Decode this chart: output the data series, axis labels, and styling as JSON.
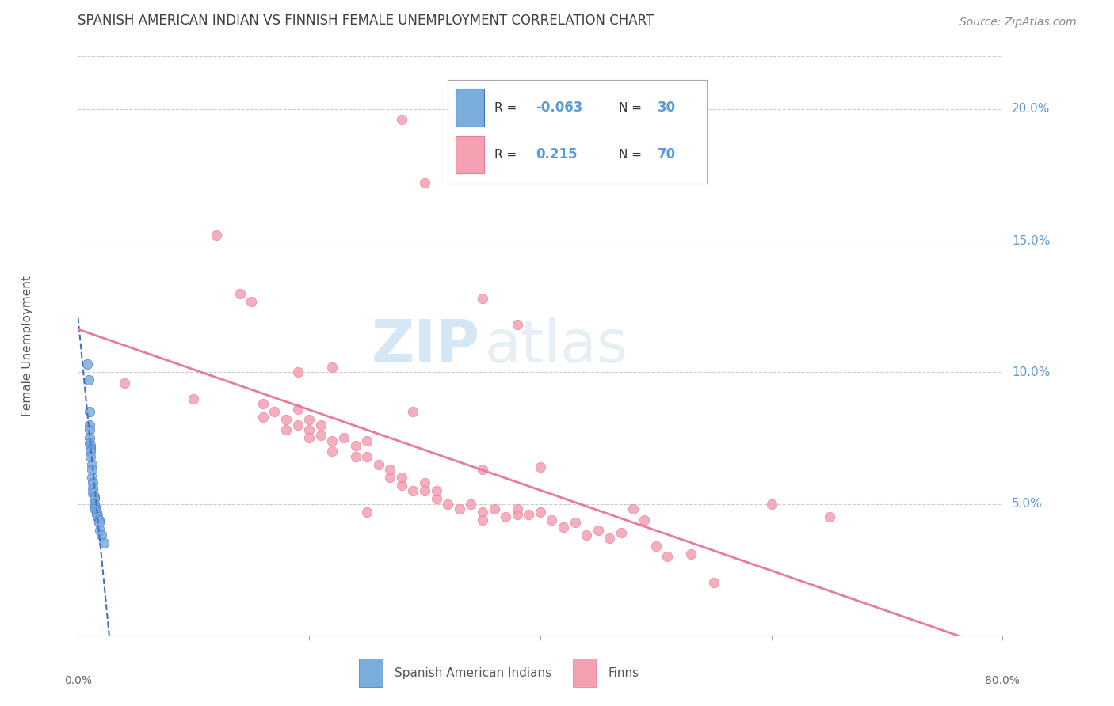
{
  "title": "SPANISH AMERICAN INDIAN VS FINNISH FEMALE UNEMPLOYMENT CORRELATION CHART",
  "source": "Source: ZipAtlas.com",
  "ylabel": "Female Unemployment",
  "ytick_labels": [
    "5.0%",
    "10.0%",
    "15.0%",
    "20.0%"
  ],
  "ytick_values": [
    0.05,
    0.1,
    0.15,
    0.2
  ],
  "xlim": [
    0.0,
    0.8
  ],
  "ylim": [
    0.0,
    0.22
  ],
  "watermark_zip": "ZIP",
  "watermark_atlas": "atlas",
  "color_blue": "#7aaddc",
  "color_pink": "#f4a0b0",
  "color_blue_dark": "#4472c4",
  "color_pink_dark": "#e879a0",
  "color_axis_label": "#5b9bd5",
  "color_title": "#404040",
  "color_source": "#888888",
  "color_grid": "#cccccc",
  "blue_scatter_x": [
    0.008,
    0.009,
    0.01,
    0.01,
    0.01,
    0.01,
    0.01,
    0.011,
    0.011,
    0.011,
    0.011,
    0.012,
    0.012,
    0.012,
    0.013,
    0.013,
    0.013,
    0.014,
    0.014,
    0.014,
    0.015,
    0.015,
    0.016,
    0.016,
    0.017,
    0.018,
    0.018,
    0.019,
    0.02,
    0.022
  ],
  "blue_scatter_y": [
    0.103,
    0.097,
    0.085,
    0.08,
    0.078,
    0.075,
    0.073,
    0.072,
    0.071,
    0.07,
    0.068,
    0.065,
    0.063,
    0.06,
    0.058,
    0.056,
    0.054,
    0.053,
    0.052,
    0.05,
    0.049,
    0.048,
    0.047,
    0.046,
    0.045,
    0.044,
    0.043,
    0.04,
    0.038,
    0.035
  ],
  "pink_scatter_x": [
    0.04,
    0.1,
    0.12,
    0.14,
    0.15,
    0.16,
    0.16,
    0.17,
    0.18,
    0.18,
    0.19,
    0.19,
    0.2,
    0.2,
    0.2,
    0.21,
    0.21,
    0.22,
    0.22,
    0.23,
    0.24,
    0.24,
    0.25,
    0.25,
    0.26,
    0.27,
    0.27,
    0.28,
    0.28,
    0.29,
    0.3,
    0.3,
    0.31,
    0.31,
    0.32,
    0.33,
    0.34,
    0.35,
    0.35,
    0.36,
    0.37,
    0.38,
    0.38,
    0.39,
    0.4,
    0.41,
    0.42,
    0.43,
    0.44,
    0.45,
    0.46,
    0.47,
    0.48,
    0.49,
    0.5,
    0.51,
    0.53,
    0.55,
    0.6,
    0.65,
    0.28,
    0.3,
    0.35,
    0.38,
    0.29,
    0.22,
    0.19,
    0.35,
    0.4,
    0.25
  ],
  "pink_scatter_y": [
    0.096,
    0.09,
    0.152,
    0.13,
    0.127,
    0.088,
    0.083,
    0.085,
    0.082,
    0.078,
    0.086,
    0.08,
    0.082,
    0.078,
    0.075,
    0.08,
    0.076,
    0.074,
    0.07,
    0.075,
    0.072,
    0.068,
    0.074,
    0.068,
    0.065,
    0.06,
    0.063,
    0.057,
    0.06,
    0.055,
    0.058,
    0.055,
    0.052,
    0.055,
    0.05,
    0.048,
    0.05,
    0.047,
    0.044,
    0.048,
    0.045,
    0.046,
    0.048,
    0.046,
    0.047,
    0.044,
    0.041,
    0.043,
    0.038,
    0.04,
    0.037,
    0.039,
    0.048,
    0.044,
    0.034,
    0.03,
    0.031,
    0.02,
    0.05,
    0.045,
    0.196,
    0.172,
    0.128,
    0.118,
    0.085,
    0.102,
    0.1,
    0.063,
    0.064,
    0.047
  ]
}
